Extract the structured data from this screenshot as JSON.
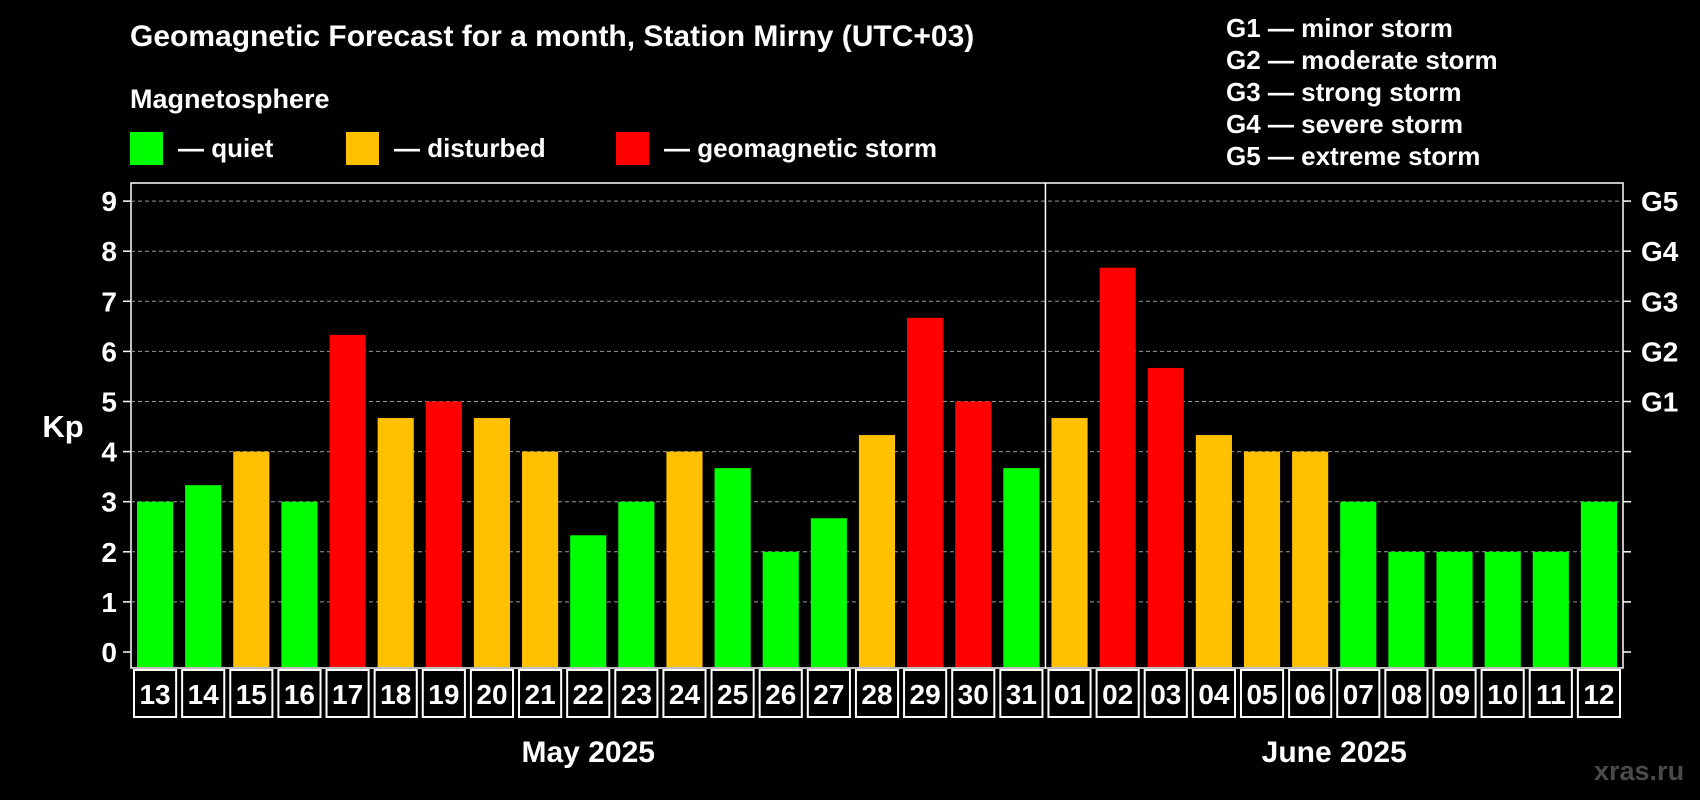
{
  "header": {
    "title": "Geomagnetic Forecast for a month, Station Mirny (UTC+03)",
    "subtitle": "Magnetosphere",
    "watermark": "xras.ru"
  },
  "legend": [
    {
      "label": "— quiet",
      "color": "#00ff00"
    },
    {
      "label": "— disturbed",
      "color": "#ffc000"
    },
    {
      "label": "— geomagnetic storm",
      "color": "#ff0000"
    }
  ],
  "storm_scale": [
    "G1 — minor storm",
    "G2 — moderate storm",
    "G3 — strong storm",
    "G4 — severe storm",
    "G5 — extreme storm"
  ],
  "chart_data": {
    "type": "bar",
    "title": "Geomagnetic Forecast for a month, Station Mirny (UTC+03)",
    "ylabel": "Kp",
    "ylim": [
      0,
      9
    ],
    "yticks": [
      "0",
      "1",
      "2",
      "3",
      "4",
      "5",
      "6",
      "7",
      "8",
      "9"
    ],
    "right_axis": [
      {
        "value": 5,
        "label": "G1"
      },
      {
        "value": 6,
        "label": "G2"
      },
      {
        "value": 7,
        "label": "G3"
      },
      {
        "value": 8,
        "label": "G4"
      },
      {
        "value": 9,
        "label": "G5"
      }
    ],
    "categories": [
      "13",
      "14",
      "15",
      "16",
      "17",
      "18",
      "19",
      "20",
      "21",
      "22",
      "23",
      "24",
      "25",
      "26",
      "27",
      "28",
      "29",
      "30",
      "31",
      "01",
      "02",
      "03",
      "04",
      "05",
      "06",
      "07",
      "08",
      "09",
      "10",
      "11",
      "12"
    ],
    "values": [
      3,
      3.33,
      4,
      3,
      6.33,
      4.67,
      5,
      4.67,
      4,
      2.33,
      3,
      4,
      3.67,
      2,
      2.67,
      4.33,
      6.67,
      5,
      3.67,
      4.67,
      7.67,
      5.67,
      4.33,
      4,
      4,
      3,
      2,
      2,
      2,
      2,
      3
    ],
    "levels": [
      "quiet",
      "quiet",
      "disturbed",
      "quiet",
      "storm",
      "disturbed",
      "storm",
      "disturbed",
      "disturbed",
      "quiet",
      "quiet",
      "disturbed",
      "quiet",
      "quiet",
      "quiet",
      "disturbed",
      "storm",
      "storm",
      "quiet",
      "disturbed",
      "storm",
      "storm",
      "disturbed",
      "disturbed",
      "disturbed",
      "quiet",
      "quiet",
      "quiet",
      "quiet",
      "quiet",
      "quiet"
    ],
    "level_colors": {
      "quiet": "#00ff00",
      "disturbed": "#ffc000",
      "storm": "#ff0000"
    },
    "months": [
      {
        "label": "May 2025",
        "days": 19
      },
      {
        "label": "June 2025",
        "days": 12
      }
    ],
    "grid": true
  }
}
